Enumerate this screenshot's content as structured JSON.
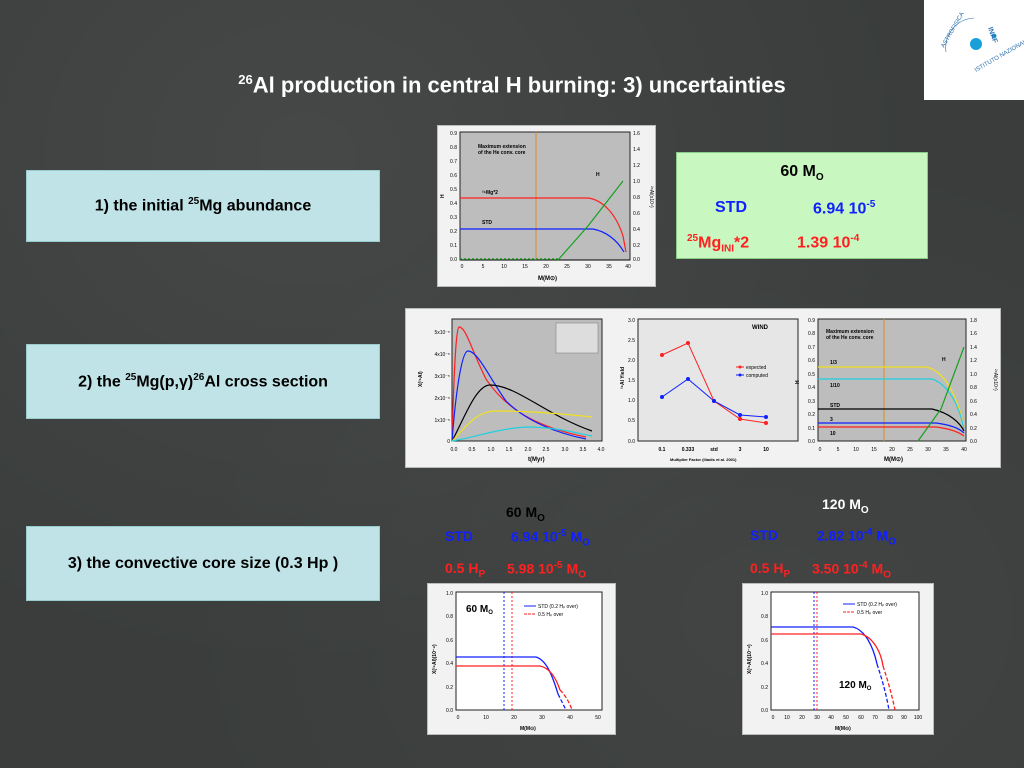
{
  "title": {
    "sup": "26",
    "text": "Al production in central H burning:   3) uncertainties"
  },
  "logo": {
    "lines": [
      "ASTROFISICA",
      "INAF",
      "ISTITUTO NAZIONALE DI"
    ]
  },
  "boxes": {
    "b1": {
      "pre": "1) the initial ",
      "sup": "25",
      "post": "Mg abundance"
    },
    "b2": {
      "pre": "2) the ",
      "sup1": "25",
      "mid": "Mg(p,",
      "gamma": "γ",
      "mid2": ")",
      "sup2": "26",
      "post": "Al cross section"
    },
    "b3": {
      "text": "3) the convective core size (0.3 Hp )"
    }
  },
  "green": {
    "title": "60 M",
    "title_sub": "O",
    "std_label": "STD",
    "std_val": "6.94 10",
    "std_exp": "-5",
    "mg_sup": "25",
    "mg": "Mg",
    "mg_sub": "INI",
    "mg_mult": "*2",
    "mg_val": "1.39 10",
    "mg_exp": "-4"
  },
  "sec3": {
    "left": {
      "title": "60 M",
      "title_sub": "O",
      "std_label": "STD",
      "std_val": "6.94 10",
      "std_exp": "-5",
      "std_unit": "M",
      "std_unit_sub": "O",
      "hp_label": "0.5 H",
      "hp_sub": "P",
      "hp_val": "5.98 10",
      "hp_exp": "-5",
      "hp_unit": "M",
      "hp_unit_sub": "O"
    },
    "right": {
      "title": "120 M",
      "title_sub": "O",
      "std_label": "STD",
      "std_val": "2.82 10",
      "std_exp": "-4",
      "std_unit": "M",
      "std_unit_sub": "O",
      "hp_label": "0.5 H",
      "hp_sub": "P",
      "hp_val": "3.50 10",
      "hp_exp": "-4",
      "hp_unit": "M",
      "hp_unit_sub": "O"
    }
  },
  "plots": {
    "p1": {
      "ann": [
        "Maximum extension",
        "of the He conv. core"
      ],
      "labels": [
        "H",
        "STD",
        "²⁵Mg*2"
      ],
      "xlabel": "M(M⊙)",
      "ylabel": "H",
      "y2label": "²⁶Al(x10⁴)",
      "xticks": [
        "0",
        "5",
        "10",
        "15",
        "20",
        "25",
        "30",
        "35",
        "40"
      ],
      "yticks": [
        "0.9",
        "0.8",
        "0.7",
        "0.6",
        "0.5",
        "0.4",
        "0.3",
        "0.2",
        "0.1",
        "0.0"
      ],
      "y2ticks": [
        "1.6",
        "1.4",
        "1.2",
        "1.0",
        "0.8",
        "0.6",
        "0.4",
        "0.2",
        "0.0"
      ]
    },
    "p2": {
      "xlabel": "t(Myr)",
      "ylabel": "X(²⁶Al)",
      "xticks": [
        "0.0",
        "0.5",
        "1.0",
        "1.5",
        "2.0",
        "2.5",
        "3.0",
        "3.5",
        "4.0"
      ],
      "yticks": [
        "5x10⁻⁵",
        "4x10⁻⁵",
        "3x10⁻⁵",
        "2x10⁻⁵",
        "1x10⁻⁵",
        "0"
      ]
    },
    "p3": {
      "wind": "WIND",
      "legend": [
        "expected",
        "computed"
      ],
      "xlabel": "Multiplier Factor (Iliadis et al. 2001)",
      "ylabel": "²⁶Al Yield",
      "xticks": [
        "0.1",
        "0.333",
        "std",
        "3",
        "10"
      ],
      "yticks": [
        "3.0",
        "2.5",
        "2.0",
        "1.5",
        "1.0",
        "0.5",
        "0.0"
      ]
    },
    "p4": {
      "ann": [
        "Maximum extension",
        "of the He conv. core"
      ],
      "labels": [
        "H",
        "1/3",
        "1/10",
        "STD",
        "3",
        "10"
      ],
      "xlabel": "M(M⊙)",
      "ylabel": "H",
      "y2label": "²⁶Al(x10⁴)",
      "xticks": [
        "0",
        "5",
        "10",
        "15",
        "20",
        "25",
        "30",
        "35",
        "40"
      ],
      "yticks": [
        "0.9",
        "0.8",
        "0.7",
        "0.6",
        "0.5",
        "0.4",
        "0.3",
        "0.2",
        "0.1",
        "0.0"
      ],
      "y2ticks": [
        "1.8",
        "1.6",
        "1.4",
        "1.2",
        "1.0",
        "0.8",
        "0.6",
        "0.4",
        "0.2",
        "0.0"
      ]
    },
    "p5": {
      "label": "60 M",
      "label_sub": "O",
      "legend": [
        "STD (0.2 Hₚ over)",
        "0.5 Hₚ over"
      ],
      "xlabel": "M(M⊙)",
      "ylabel": "X(²⁶Al)(10⁻⁴)",
      "xticks": [
        "0",
        "10",
        "20",
        "30",
        "40",
        "50"
      ],
      "yticks": [
        "1.0",
        "0.8",
        "0.6",
        "0.4",
        "0.2",
        "0.0"
      ]
    },
    "p6": {
      "label": "120 M",
      "label_sub": "O",
      "legend": [
        "STD (0.2 Hₚ over)",
        "0.5 Hₚ over"
      ],
      "xlabel": "M(M⊙)",
      "ylabel": "X(²⁶Al)(10⁻⁴)",
      "xticks": [
        "0",
        "10",
        "20",
        "30",
        "40",
        "50",
        "60",
        "70",
        "80",
        "90",
        "100"
      ],
      "yticks": [
        "1.0",
        "0.8",
        "0.6",
        "0.4",
        "0.2",
        "0.0"
      ]
    }
  },
  "colors": {
    "std": "#1020ff",
    "alt": "#ff2020",
    "box": "#bfe3e6",
    "green": "#c8f7c0"
  }
}
